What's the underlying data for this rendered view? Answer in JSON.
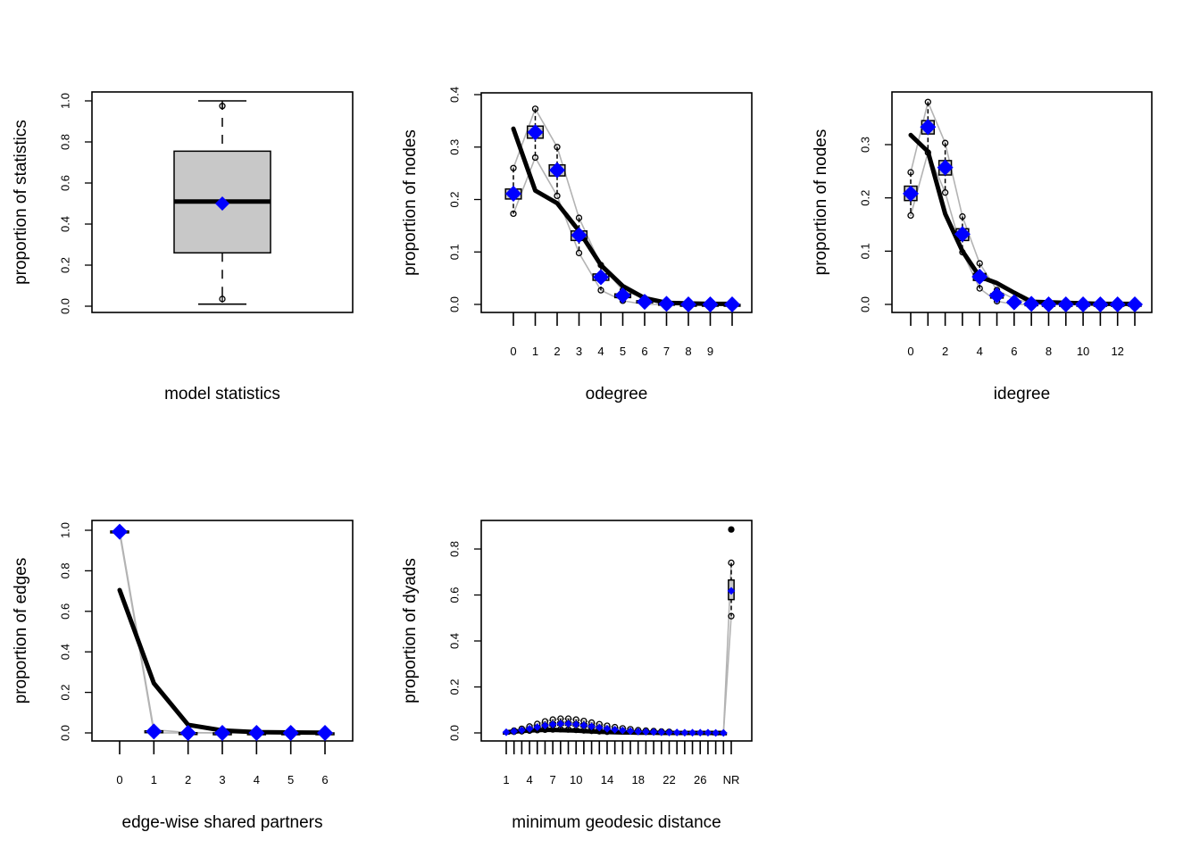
{
  "colors": {
    "observed_line": "#000000",
    "simulated_mean": "#0000ff",
    "box_fill": "#c8c8c8",
    "range_line": "#b3b3b3"
  },
  "chart_data": [
    {
      "id": "model-statistics",
      "type": "box",
      "xlabel": "model statistics",
      "ylabel": "proportion of statistics",
      "ylim": [
        0,
        1
      ],
      "yticks": [
        0.0,
        0.2,
        0.4,
        0.6,
        0.8,
        1.0
      ],
      "ytick_labels": [
        "0.0",
        "0.2",
        "0.4",
        "0.6",
        "0.8",
        "1.0"
      ],
      "box": {
        "whisker_low": 0.01,
        "q1": 0.26,
        "median": 0.51,
        "q3": 0.755,
        "whisker_high": 1.0
      },
      "outliers": [
        0.035,
        0.975
      ],
      "mean": 0.5
    },
    {
      "id": "odegree",
      "type": "gof",
      "xlabel": "odegree",
      "ylabel": "proportion of nodes",
      "ylim": [
        0,
        0.4
      ],
      "yticks": [
        0.0,
        0.1,
        0.2,
        0.3,
        0.4
      ],
      "ytick_labels": [
        "0.0",
        "0.1",
        "0.2",
        "0.3",
        "0.4"
      ],
      "x": [
        0,
        1,
        2,
        3,
        4,
        5,
        6,
        7,
        8,
        9,
        10
      ],
      "xtick_labels": [
        "0",
        "1",
        "2",
        "3",
        "4",
        "5",
        "6",
        "7",
        "8",
        "9",
        ""
      ],
      "observed": [
        0.335,
        0.217,
        0.193,
        0.14,
        0.075,
        0.035,
        0.012,
        0.003,
        0.002,
        0.001,
        0.001
      ],
      "sim_mean": [
        0.211,
        0.328,
        0.256,
        0.132,
        0.052,
        0.017,
        0.005,
        0.001,
        0.0,
        0.0,
        0.0
      ],
      "q1": [
        0.201,
        0.317,
        0.245,
        0.122,
        0.046,
        0.013,
        0.003,
        0.0,
        0.0,
        0.0,
        0.0
      ],
      "q3": [
        0.22,
        0.34,
        0.266,
        0.14,
        0.058,
        0.02,
        0.007,
        0.002,
        0.0,
        0.0,
        0.0
      ],
      "lo": [
        0.173,
        0.28,
        0.207,
        0.098,
        0.027,
        0.007,
        0.0,
        0.0,
        0.0,
        0.0,
        0.0
      ],
      "hi": [
        0.26,
        0.373,
        0.3,
        0.165,
        0.075,
        0.027,
        0.012,
        0.003,
        0.0,
        0.0,
        0.0
      ]
    },
    {
      "id": "idegree",
      "type": "gof",
      "xlabel": "idegree",
      "ylabel": "proportion of nodes",
      "ylim": [
        0,
        0.39
      ],
      "yticks": [
        0.0,
        0.1,
        0.2,
        0.3
      ],
      "ytick_labels": [
        "0.0",
        "0.1",
        "0.2",
        "0.3"
      ],
      "x": [
        0,
        1,
        2,
        3,
        4,
        5,
        6,
        7,
        8,
        9,
        10,
        11,
        12,
        13
      ],
      "xtick_labels": [
        "0",
        "",
        "2",
        "",
        "4",
        "",
        "6",
        "",
        "8",
        "",
        "10",
        "",
        "12",
        ""
      ],
      "observed": [
        0.318,
        0.287,
        0.17,
        0.1,
        0.052,
        0.04,
        0.022,
        0.005,
        0.004,
        0.003,
        0.002,
        0.001,
        0.001,
        0.001
      ],
      "sim_mean": [
        0.208,
        0.333,
        0.257,
        0.132,
        0.052,
        0.017,
        0.004,
        0.001,
        0.0,
        0.0,
        0.0,
        0.0,
        0.0,
        0.0
      ],
      "q1": [
        0.195,
        0.32,
        0.243,
        0.12,
        0.045,
        0.012,
        0.002,
        0.0,
        0.0,
        0.0,
        0.0,
        0.0,
        0.0,
        0.0
      ],
      "q3": [
        0.222,
        0.345,
        0.27,
        0.142,
        0.058,
        0.02,
        0.006,
        0.001,
        0.0,
        0.0,
        0.0,
        0.0,
        0.0,
        0.0
      ],
      "lo": [
        0.167,
        0.285,
        0.21,
        0.098,
        0.03,
        0.006,
        0.0,
        0.0,
        0.0,
        0.0,
        0.0,
        0.0,
        0.0,
        0.0
      ],
      "hi": [
        0.248,
        0.38,
        0.303,
        0.165,
        0.077,
        0.027,
        0.01,
        0.003,
        0.0,
        0.0,
        0.0,
        0.0,
        0.0,
        0.0
      ]
    },
    {
      "id": "esp",
      "type": "gof",
      "xlabel": "edge-wise shared partners",
      "ylabel": "proportion of edges",
      "ylim": [
        0,
        1.03
      ],
      "yticks": [
        0.0,
        0.2,
        0.4,
        0.6,
        0.8,
        1.0
      ],
      "ytick_labels": [
        "0.0",
        "0.2",
        "0.4",
        "0.6",
        "0.8",
        "1.0"
      ],
      "x": [
        0,
        1,
        2,
        3,
        4,
        5,
        6
      ],
      "xtick_labels": [
        "0",
        "1",
        "2",
        "3",
        "4",
        "5",
        "6"
      ],
      "observed": [
        0.705,
        0.245,
        0.04,
        0.012,
        0.004,
        0.002,
        0.001
      ],
      "sim_mean": [
        0.993,
        0.007,
        0.0,
        0.0,
        0.0,
        0.0,
        0.0
      ],
      "q1": [
        0.99,
        0.004,
        0.0,
        0.0,
        0.0,
        0.0,
        0.0
      ],
      "q3": [
        0.996,
        0.01,
        0.001,
        0.0,
        0.0,
        0.0,
        0.0
      ],
      "lo": [
        0.985,
        0.0,
        0.0,
        0.0,
        0.0,
        0.0,
        0.0
      ],
      "hi": [
        1.0,
        0.015,
        0.002,
        0.0,
        0.0,
        0.0,
        0.0
      ]
    },
    {
      "id": "geodesic",
      "type": "gof",
      "xlabel": "minimum geodesic distance",
      "ylabel": "proportion of dyads",
      "ylim": [
        0,
        0.91
      ],
      "yticks": [
        0.0,
        0.2,
        0.4,
        0.6,
        0.8
      ],
      "ytick_labels": [
        "0.0",
        "0.2",
        "0.4",
        "0.6",
        "0.8"
      ],
      "x": [
        1,
        2,
        3,
        4,
        5,
        6,
        7,
        8,
        9,
        10,
        11,
        12,
        13,
        14,
        15,
        16,
        17,
        18,
        19,
        20,
        21,
        22,
        23,
        24,
        25,
        26,
        27,
        28,
        29,
        "NR"
      ],
      "xtick_labels": [
        "1",
        "",
        "",
        "4",
        "",
        "",
        "7",
        "",
        "",
        "10",
        "",
        "",
        "",
        "14",
        "",
        "",
        "",
        "18",
        "",
        "",
        "",
        "22",
        "",
        "",
        "",
        "26",
        "",
        "",
        "",
        "NR"
      ],
      "observed": [
        0.003,
        0.006,
        0.008,
        0.01,
        0.012,
        0.013,
        0.013,
        0.012,
        0.011,
        0.01,
        0.008,
        0.007,
        0.005,
        0.004,
        0.003,
        0.002,
        0.002,
        0.001,
        0.001,
        0.001,
        0.0,
        0.0,
        0.0,
        0.0,
        0.0,
        0.0,
        0.0,
        0.0,
        0.0,
        0.885
      ],
      "sim_mean": [
        0.003,
        0.007,
        0.012,
        0.018,
        0.025,
        0.032,
        0.037,
        0.04,
        0.04,
        0.037,
        0.033,
        0.028,
        0.023,
        0.018,
        0.014,
        0.011,
        0.008,
        0.006,
        0.005,
        0.004,
        0.003,
        0.002,
        0.002,
        0.001,
        0.001,
        0.001,
        0.001,
        0.0,
        0.0,
        0.618
      ],
      "q1": [
        0.003,
        0.006,
        0.01,
        0.015,
        0.02,
        0.026,
        0.03,
        0.033,
        0.033,
        0.03,
        0.026,
        0.021,
        0.017,
        0.013,
        0.01,
        0.007,
        0.005,
        0.004,
        0.003,
        0.002,
        0.001,
        0.001,
        0.001,
        0.0,
        0.0,
        0.0,
        0.0,
        0.0,
        0.0,
        0.58
      ],
      "q3": [
        0.003,
        0.008,
        0.014,
        0.021,
        0.03,
        0.038,
        0.044,
        0.047,
        0.047,
        0.044,
        0.04,
        0.034,
        0.028,
        0.022,
        0.017,
        0.013,
        0.01,
        0.008,
        0.006,
        0.005,
        0.004,
        0.003,
        0.002,
        0.002,
        0.001,
        0.001,
        0.001,
        0.0,
        0.0,
        0.665
      ],
      "lo": [
        0.003,
        0.005,
        0.007,
        0.01,
        0.012,
        0.014,
        0.015,
        0.016,
        0.015,
        0.013,
        0.011,
        0.009,
        0.007,
        0.005,
        0.003,
        0.002,
        0.001,
        0.001,
        0.0,
        0.0,
        0.0,
        0.0,
        0.0,
        0.0,
        0.0,
        0.0,
        0.0,
        0.0,
        0.0,
        0.508
      ],
      "hi": [
        0.004,
        0.01,
        0.018,
        0.028,
        0.039,
        0.05,
        0.058,
        0.062,
        0.062,
        0.058,
        0.052,
        0.045,
        0.038,
        0.031,
        0.025,
        0.02,
        0.016,
        0.012,
        0.01,
        0.008,
        0.006,
        0.005,
        0.004,
        0.003,
        0.002,
        0.002,
        0.001,
        0.001,
        0.001,
        0.74
      ]
    }
  ]
}
